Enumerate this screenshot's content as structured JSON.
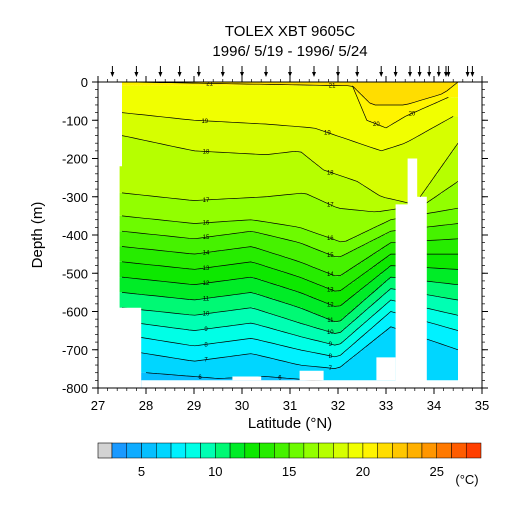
{
  "chart_data": {
    "type": "heatmap",
    "title": "TOLEX XBT 9605C",
    "subtitle": "1996/ 5/19 - 1996/ 5/24",
    "xlabel": "Latitude (°N)",
    "ylabel": "Depth (m)",
    "xlim": [
      27,
      35
    ],
    "ylim": [
      -800,
      0
    ],
    "x_ticks": [
      "27",
      "28",
      "29",
      "30",
      "31",
      "32",
      "33",
      "34",
      "35"
    ],
    "y_ticks": [
      "0",
      "-100",
      "-200",
      "-300",
      "-400",
      "-500",
      "-600",
      "-700",
      "-800"
    ],
    "station_latitudes": [
      27.3,
      27.8,
      28.3,
      28.7,
      29.1,
      29.6,
      30.0,
      30.5,
      31.0,
      31.5,
      32.0,
      32.4,
      32.9,
      33.2,
      33.5,
      33.7,
      33.9,
      34.1,
      34.25,
      34.3,
      34.7,
      34.8
    ],
    "colorbar": {
      "unit": "(°C)",
      "range": [
        3,
        28
      ],
      "tick_labels": [
        "5",
        "10",
        "15",
        "20",
        "25"
      ],
      "tick_values": [
        5,
        10,
        15,
        20,
        25
      ]
    },
    "contour_lines": [
      {
        "label": "21",
        "depth_by_lat": [
          [
            27.6,
            0
          ],
          [
            32.3,
            -10
          ],
          [
            32.7,
            -60
          ],
          [
            33.4,
            -60
          ],
          [
            34.2,
            -30
          ],
          [
            34.5,
            0
          ]
        ]
      },
      {
        "label": "20",
        "depth_by_lat": [
          [
            32.3,
            -10
          ],
          [
            32.6,
            -100
          ],
          [
            33.0,
            -120
          ],
          [
            33.4,
            -90
          ],
          [
            34.3,
            -40
          ]
        ]
      },
      {
        "label": "19",
        "depth_by_lat": [
          [
            27.5,
            -80
          ],
          [
            29,
            -100
          ],
          [
            30.5,
            -110
          ],
          [
            31.5,
            -120
          ],
          [
            32.2,
            -150
          ],
          [
            32.9,
            -180
          ],
          [
            33.4,
            -160
          ],
          [
            34.4,
            -90
          ]
        ]
      },
      {
        "label": "18",
        "depth_by_lat": [
          [
            27.5,
            -140
          ],
          [
            29,
            -180
          ],
          [
            30.5,
            -190
          ],
          [
            31.2,
            -180
          ],
          [
            31.7,
            -230
          ],
          [
            32.4,
            -260
          ],
          [
            32.9,
            -300
          ],
          [
            33.6,
            -320
          ],
          [
            34.5,
            -160
          ]
        ]
      },
      {
        "label": "17",
        "depth_by_lat": [
          [
            27.5,
            -290
          ],
          [
            29,
            -310
          ],
          [
            30.5,
            -300
          ],
          [
            31.3,
            -290
          ],
          [
            32.0,
            -330
          ],
          [
            32.8,
            -340
          ],
          [
            33.8,
            -320
          ],
          [
            34.5,
            -260
          ]
        ]
      },
      {
        "label": "16",
        "depth_by_lat": [
          [
            27.5,
            -350
          ],
          [
            29,
            -370
          ],
          [
            30.2,
            -360
          ],
          [
            31.2,
            -380
          ],
          [
            32.1,
            -420
          ],
          [
            33.1,
            -360
          ],
          [
            34.5,
            -330
          ]
        ]
      },
      {
        "label": "15",
        "depth_by_lat": [
          [
            27.5,
            -390
          ],
          [
            29,
            -410
          ],
          [
            30.2,
            -390
          ],
          [
            31.2,
            -420
          ],
          [
            32.0,
            -460
          ],
          [
            33.1,
            -390
          ],
          [
            34.5,
            -370
          ]
        ]
      },
      {
        "label": "14",
        "depth_by_lat": [
          [
            27.5,
            -430
          ],
          [
            29,
            -450
          ],
          [
            30.2,
            -430
          ],
          [
            31.2,
            -470
          ],
          [
            32.0,
            -510
          ],
          [
            33.1,
            -420
          ],
          [
            34.5,
            -410
          ]
        ]
      },
      {
        "label": "13",
        "depth_by_lat": [
          [
            27.5,
            -470
          ],
          [
            29,
            -490
          ],
          [
            30.2,
            -470
          ],
          [
            31.2,
            -510
          ],
          [
            32.0,
            -550
          ],
          [
            33.1,
            -450
          ],
          [
            34.5,
            -450
          ]
        ]
      },
      {
        "label": "12",
        "depth_by_lat": [
          [
            27.5,
            -510
          ],
          [
            29,
            -530
          ],
          [
            30.2,
            -510
          ],
          [
            31.2,
            -550
          ],
          [
            32.0,
            -590
          ],
          [
            33.1,
            -480
          ],
          [
            34.5,
            -490
          ]
        ]
      },
      {
        "label": "11",
        "depth_by_lat": [
          [
            27.5,
            -550
          ],
          [
            29,
            -570
          ],
          [
            30.2,
            -550
          ],
          [
            31.2,
            -590
          ],
          [
            32.0,
            -630
          ],
          [
            33.1,
            -510
          ],
          [
            34.5,
            -530
          ]
        ]
      },
      {
        "label": "10",
        "depth_by_lat": [
          [
            27.5,
            -590
          ],
          [
            29,
            -610
          ],
          [
            30.2,
            -590
          ],
          [
            31.2,
            -630
          ],
          [
            32.0,
            -660
          ],
          [
            33.1,
            -540
          ],
          [
            34.5,
            -570
          ]
        ]
      },
      {
        "label": "9",
        "depth_by_lat": [
          [
            27.5,
            -625
          ],
          [
            29,
            -650
          ],
          [
            30.2,
            -630
          ],
          [
            31.2,
            -665
          ],
          [
            32.0,
            -690
          ],
          [
            33.1,
            -570
          ],
          [
            34.5,
            -610
          ]
        ]
      },
      {
        "label": "8",
        "depth_by_lat": [
          [
            27.5,
            -660
          ],
          [
            29,
            -690
          ],
          [
            30.2,
            -670
          ],
          [
            31.2,
            -700
          ],
          [
            32.0,
            -720
          ],
          [
            33.1,
            -600
          ],
          [
            34.5,
            -650
          ]
        ]
      },
      {
        "label": "7",
        "depth_by_lat": [
          [
            27.5,
            -700
          ],
          [
            29,
            -730
          ],
          [
            30.2,
            -710
          ],
          [
            31.2,
            -740
          ],
          [
            32.0,
            -750
          ],
          [
            33.1,
            -640
          ],
          [
            34.5,
            -700
          ]
        ]
      },
      {
        "label": "6",
        "depth_by_lat": [
          [
            28.0,
            -760
          ],
          [
            29.5,
            -775
          ],
          [
            30.5,
            -770
          ],
          [
            31.5,
            -780
          ],
          [
            32.5,
            -785
          ]
        ]
      }
    ]
  }
}
